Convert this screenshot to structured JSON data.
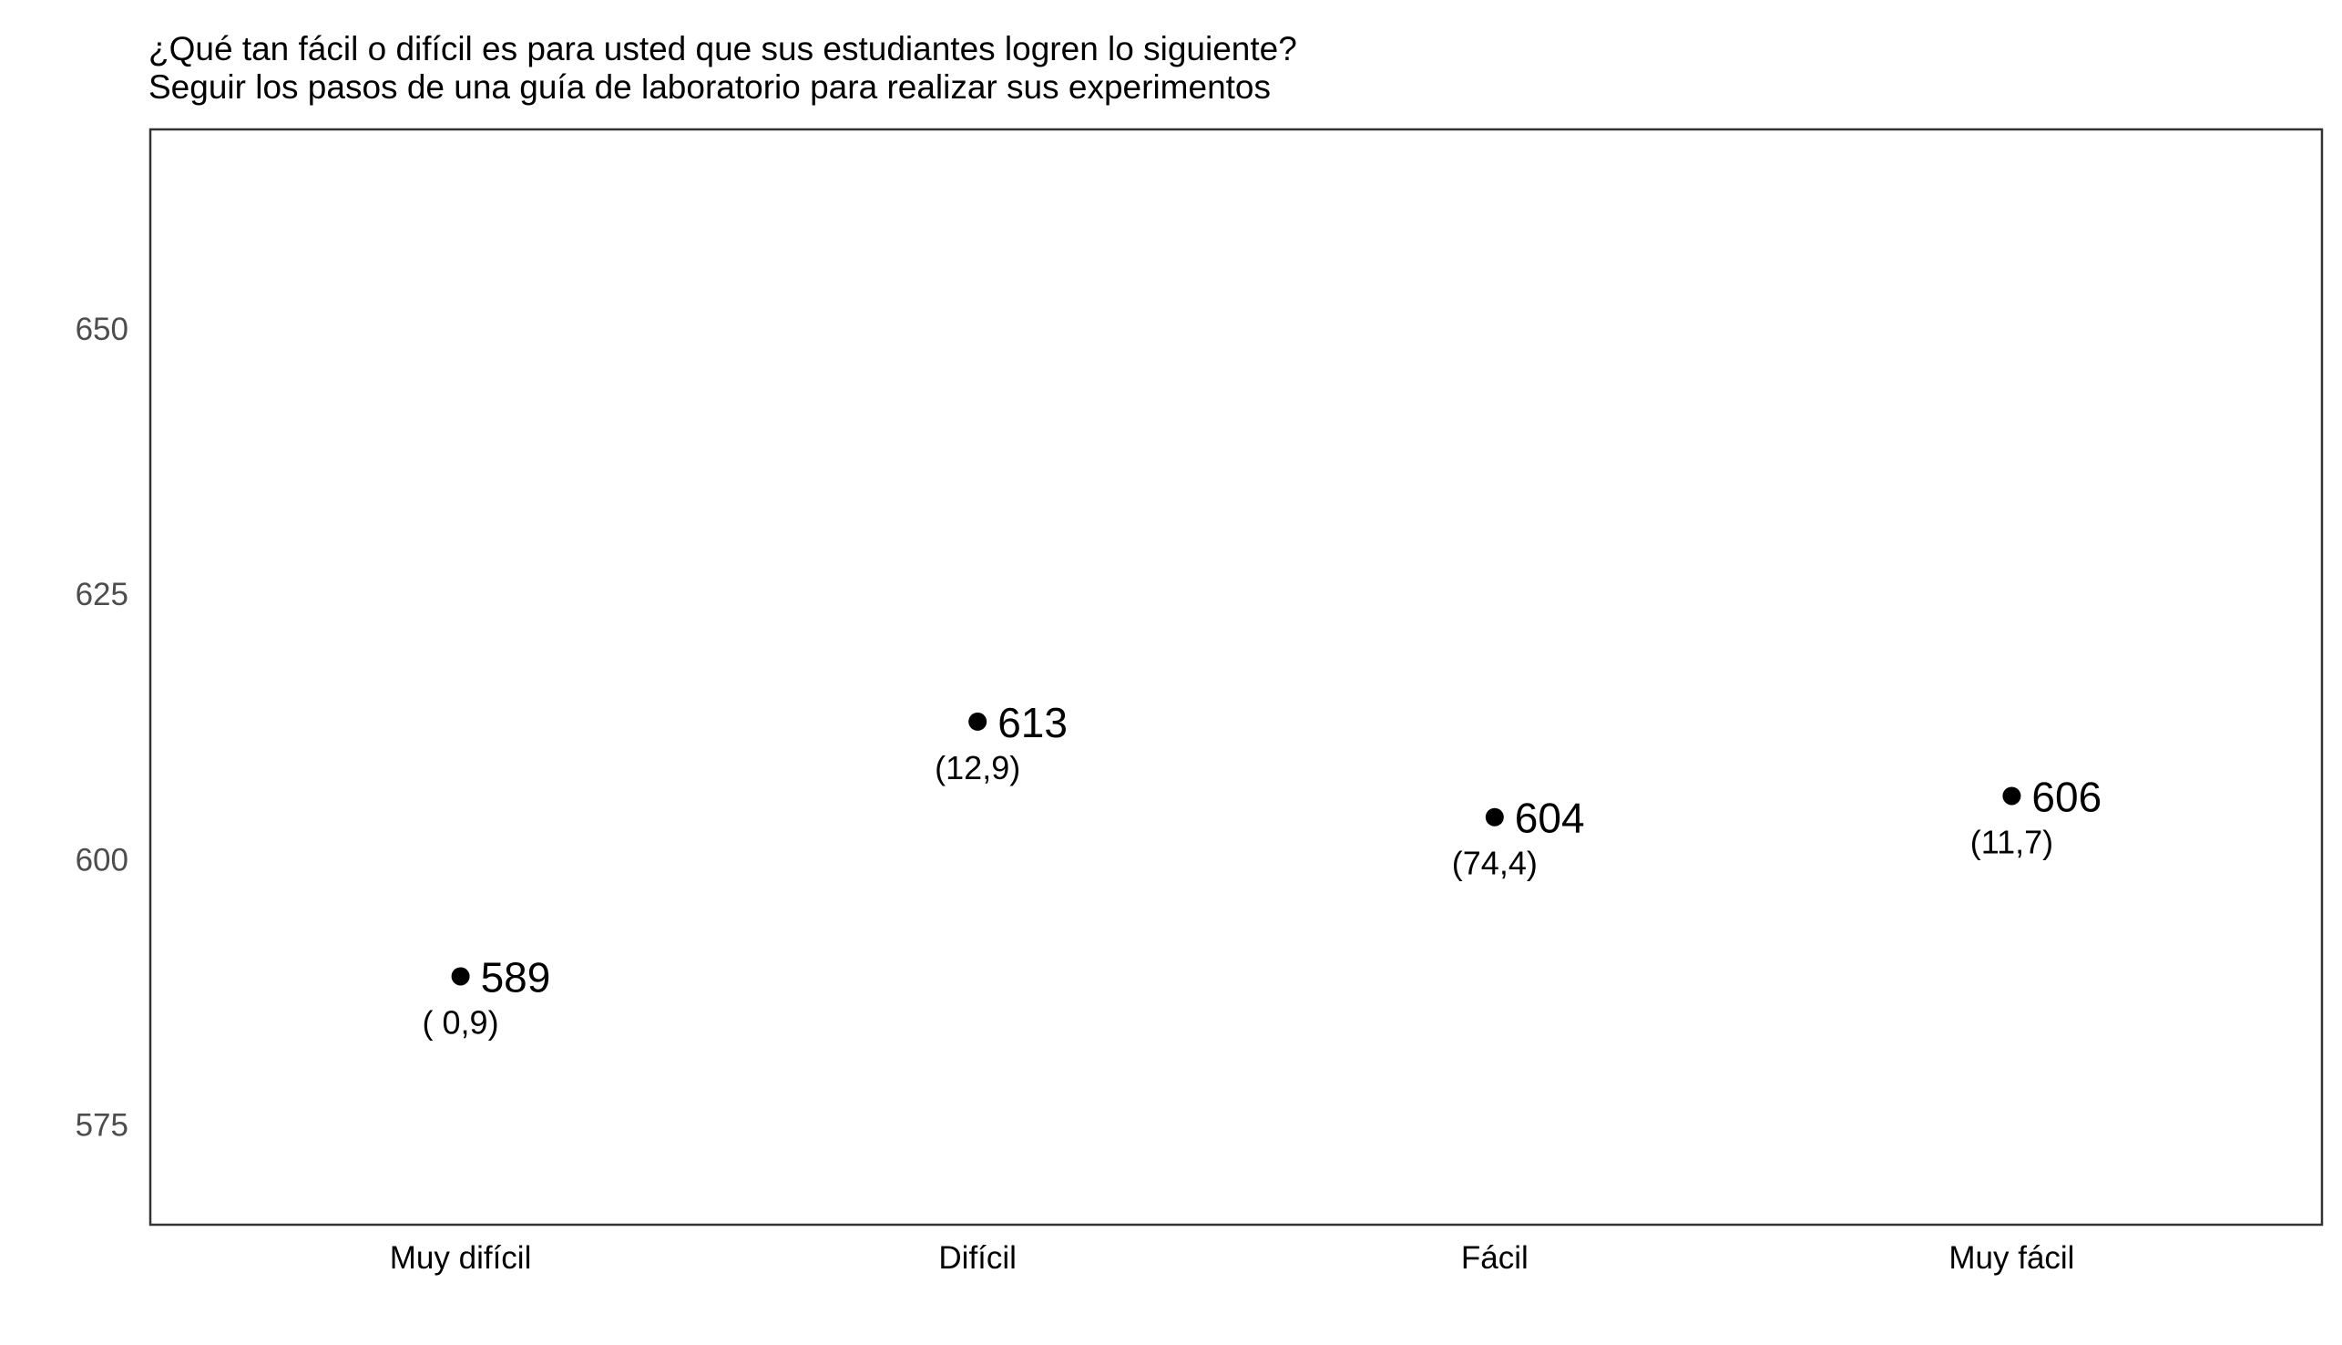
{
  "chart_data": {
    "type": "scatter",
    "title": "¿Qué tan fácil o difícil es para usted que sus estudiantes logren lo siguiente?",
    "subtitle": "Seguir los pasos de una guía de laboratorio para realizar sus experimentos",
    "xlabel": "",
    "ylabel": "",
    "categories": [
      "Muy difícil",
      "Difícil",
      "Fácil",
      "Muy fácil"
    ],
    "values": [
      589,
      613,
      604,
      606
    ],
    "value_labels": [
      "589",
      "613",
      "604",
      "606"
    ],
    "percent_labels": [
      "( 0,9)",
      "(12,9)",
      "(74,4)",
      "(11,7)"
    ],
    "y_ticks": [
      575,
      600,
      625,
      650
    ],
    "y_tick_labels": [
      "575",
      "600",
      "625",
      "650"
    ],
    "ylim": [
      565.6,
      668.8
    ],
    "grid": false,
    "legend": "none",
    "point_color": "#000000"
  }
}
